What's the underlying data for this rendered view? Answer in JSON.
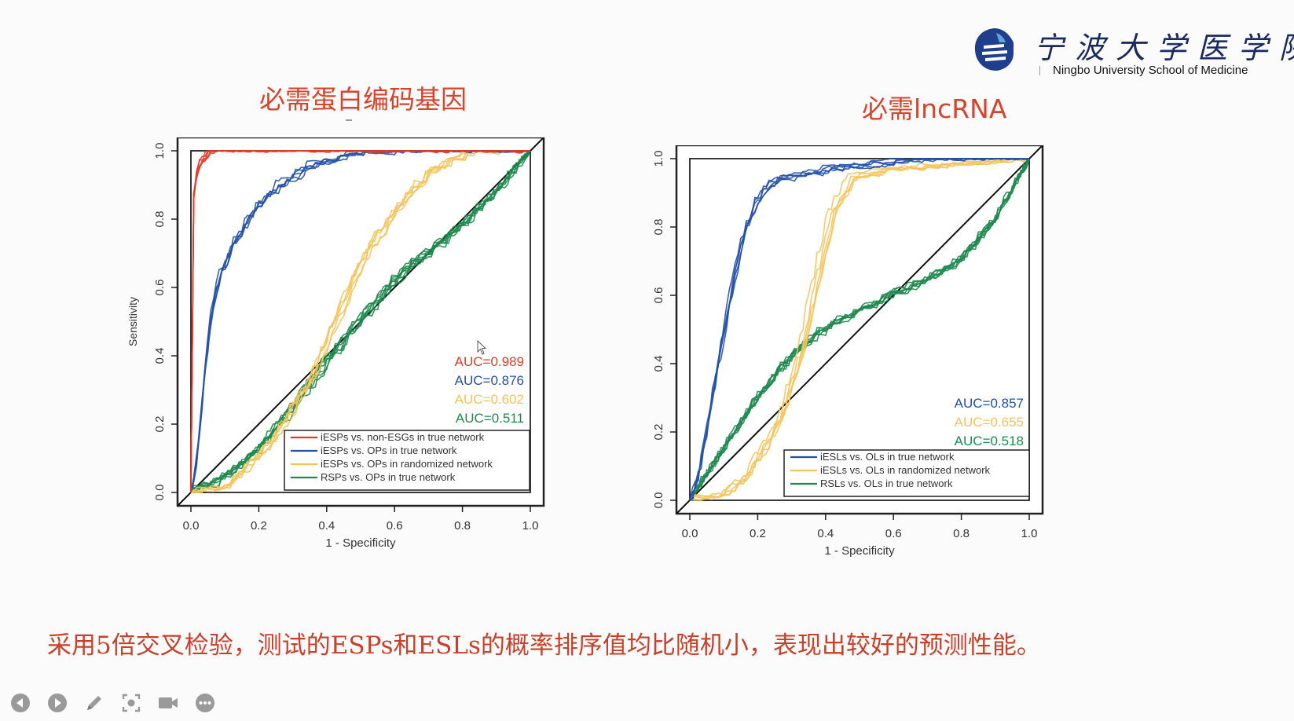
{
  "header": {
    "logo_cn": "宁波大学医学院",
    "logo_en": "Ningbo University School of Medicine",
    "logo_icon": "ningbo-university-emblem"
  },
  "caption": "采用5倍交叉检验，测试的ESPs和ESLs的概率排序值均比随机小，表现出较好的预测性能。",
  "toolbar": {
    "buttons": [
      "prev-icon",
      "play-icon",
      "pen-icon",
      "screenshot-icon",
      "camera-icon",
      "more-icon"
    ]
  },
  "colors": {
    "red": "#e23a25",
    "blue": "#2351a8",
    "yellow": "#f5c35a",
    "green": "#1e8a4e",
    "title": "#d8432b"
  },
  "chart_data": [
    {
      "type": "line",
      "title": "必需蛋白编码基因",
      "xlabel": "1 - Specificity",
      "ylabel": "Sensitivity",
      "xlim": [
        0,
        1
      ],
      "ylim": [
        0,
        1
      ],
      "x_ticks": [
        "0.0",
        "0.2",
        "0.4",
        "0.6",
        "0.8",
        "1.0"
      ],
      "y_ticks": [
        "0.0",
        "0.2",
        "0.4",
        "0.6",
        "0.8",
        "1.0"
      ],
      "legend_position": "bottom-right",
      "auc_labels": [
        {
          "text": "AUC=0.989",
          "color": "#e23a25"
        },
        {
          "text": "AUC=0.876",
          "color": "#2351a8"
        },
        {
          "text": "AUC=0.602",
          "color": "#f5c35a"
        },
        {
          "text": "AUC=0.511",
          "color": "#1e8a4e"
        }
      ],
      "series": [
        {
          "name": "iESPs vs. non-ESGs in true network",
          "color": "#e23a25",
          "replicates": 5,
          "points": [
            [
              0,
              0
            ],
            [
              0.002,
              0.55
            ],
            [
              0.005,
              0.8
            ],
            [
              0.01,
              0.9
            ],
            [
              0.02,
              0.95
            ],
            [
              0.04,
              0.985
            ],
            [
              0.08,
              0.998
            ],
            [
              0.2,
              1.0
            ],
            [
              1,
              1
            ]
          ]
        },
        {
          "name": "iESPs vs. OPs in true network",
          "color": "#2351a8",
          "replicates": 5,
          "points": [
            [
              0,
              0
            ],
            [
              0.02,
              0.12
            ],
            [
              0.04,
              0.35
            ],
            [
              0.06,
              0.52
            ],
            [
              0.08,
              0.62
            ],
            [
              0.12,
              0.72
            ],
            [
              0.18,
              0.82
            ],
            [
              0.25,
              0.89
            ],
            [
              0.35,
              0.95
            ],
            [
              0.5,
              0.99
            ],
            [
              0.7,
              1.0
            ],
            [
              1,
              1
            ]
          ]
        },
        {
          "name": "iESPs vs. OPs in randomized network",
          "color": "#f5c35a",
          "replicates": 5,
          "points": [
            [
              0,
              0
            ],
            [
              0.08,
              0.0
            ],
            [
              0.15,
              0.05
            ],
            [
              0.25,
              0.16
            ],
            [
              0.35,
              0.32
            ],
            [
              0.45,
              0.55
            ],
            [
              0.52,
              0.7
            ],
            [
              0.6,
              0.82
            ],
            [
              0.7,
              0.93
            ],
            [
              0.8,
              0.98
            ],
            [
              0.9,
              1.0
            ],
            [
              1,
              1
            ]
          ]
        },
        {
          "name": "RSPs vs. OPs in true network",
          "color": "#1e8a4e",
          "replicates": 7,
          "points": [
            [
              0,
              0
            ],
            [
              0.1,
              0.04
            ],
            [
              0.2,
              0.12
            ],
            [
              0.3,
              0.25
            ],
            [
              0.4,
              0.38
            ],
            [
              0.5,
              0.5
            ],
            [
              0.6,
              0.62
            ],
            [
              0.7,
              0.7
            ],
            [
              0.8,
              0.78
            ],
            [
              0.9,
              0.88
            ],
            [
              1,
              1
            ]
          ]
        }
      ]
    },
    {
      "type": "line",
      "title": "必需lncRNA",
      "xlabel": "1 - Specificity",
      "ylabel": "Sensitivity",
      "xlim": [
        0,
        1
      ],
      "ylim": [
        0,
        1
      ],
      "x_ticks": [
        "0.0",
        "0.2",
        "0.4",
        "0.6",
        "0.8",
        "1.0"
      ],
      "y_ticks": [
        "0.0",
        "0.2",
        "0.4",
        "0.6",
        "0.8",
        "1.0"
      ],
      "legend_position": "bottom-right",
      "auc_labels": [
        {
          "text": "AUC=0.857",
          "color": "#2351a8"
        },
        {
          "text": "AUC=0.655",
          "color": "#f5c35a"
        },
        {
          "text": "AUC=0.518",
          "color": "#1e8a4e"
        }
      ],
      "series": [
        {
          "name": "iESLs vs. OLs in true network",
          "color": "#2351a8",
          "replicates": 5,
          "points": [
            [
              0,
              0
            ],
            [
              0.02,
              0.05
            ],
            [
              0.05,
              0.2
            ],
            [
              0.08,
              0.38
            ],
            [
              0.12,
              0.6
            ],
            [
              0.16,
              0.78
            ],
            [
              0.2,
              0.88
            ],
            [
              0.25,
              0.93
            ],
            [
              0.4,
              0.96
            ],
            [
              0.6,
              0.98
            ],
            [
              0.85,
              1.0
            ],
            [
              1,
              1
            ]
          ]
        },
        {
          "name": "iESLs vs. OLs in randomized network",
          "color": "#f5c35a",
          "replicates": 5,
          "points": [
            [
              0,
              0
            ],
            [
              0.08,
              0.0
            ],
            [
              0.15,
              0.05
            ],
            [
              0.22,
              0.15
            ],
            [
              0.28,
              0.28
            ],
            [
              0.33,
              0.45
            ],
            [
              0.38,
              0.68
            ],
            [
              0.42,
              0.85
            ],
            [
              0.48,
              0.94
            ],
            [
              0.6,
              0.96
            ],
            [
              0.9,
              0.98
            ],
            [
              1,
              1
            ]
          ]
        },
        {
          "name": "RSLs vs. OLs in true network",
          "color": "#1e8a4e",
          "replicates": 7,
          "points": [
            [
              0,
              0
            ],
            [
              0.1,
              0.15
            ],
            [
              0.2,
              0.3
            ],
            [
              0.3,
              0.42
            ],
            [
              0.4,
              0.5
            ],
            [
              0.5,
              0.55
            ],
            [
              0.6,
              0.6
            ],
            [
              0.7,
              0.64
            ],
            [
              0.8,
              0.7
            ],
            [
              0.9,
              0.82
            ],
            [
              1,
              1
            ]
          ]
        }
      ]
    }
  ]
}
